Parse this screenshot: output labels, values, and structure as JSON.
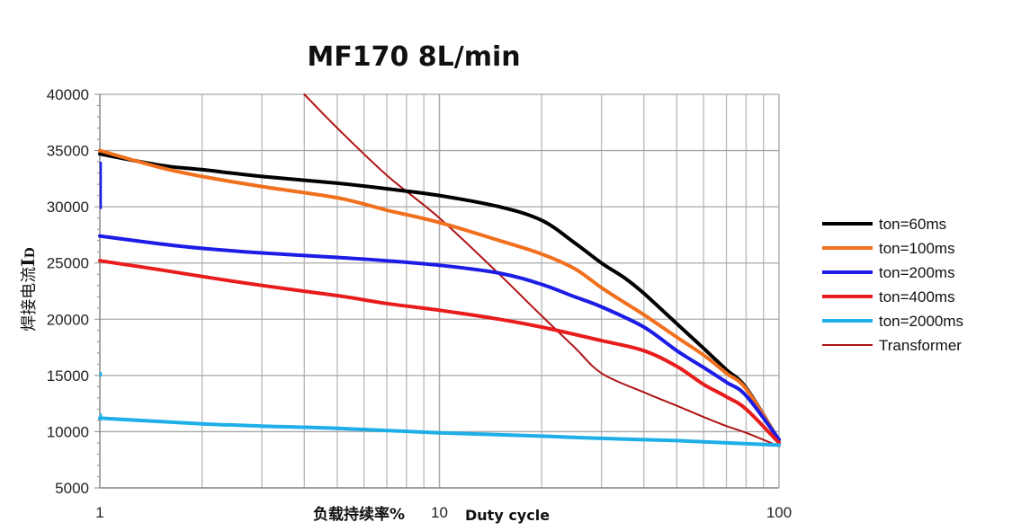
{
  "chart_data": {
    "type": "line",
    "title": "MF170 8L/min",
    "xlabel_cn": "负载持续率%",
    "xlabel_en": "Duty cycle",
    "ylabel_cn": "焊接电流",
    "ylabel_sym": "I",
    "ylabel_sub": "D",
    "x_scale": "log",
    "xlim": [
      1,
      100
    ],
    "ylim": [
      5000,
      40000
    ],
    "x_ticks": [
      1,
      10,
      100
    ],
    "x_tick_labels": [
      "1",
      "10",
      "100"
    ],
    "y_ticks": [
      5000,
      10000,
      15000,
      20000,
      25000,
      30000,
      35000,
      40000
    ],
    "y_tick_labels": [
      "5000",
      "10000",
      "15000",
      "20000",
      "25000",
      "30000",
      "35000",
      "40000"
    ],
    "grid": true,
    "legend_position": "right",
    "series": [
      {
        "name": "ton=60ms",
        "color": "#000000",
        "width": 4,
        "x": [
          1,
          1.5,
          2,
          3,
          5,
          7,
          10,
          15,
          20,
          25,
          30,
          35,
          40,
          50,
          60,
          70,
          80,
          100
        ],
        "y": [
          34700,
          33700,
          33300,
          32700,
          32100,
          31600,
          31000,
          30000,
          28800,
          26800,
          25000,
          23700,
          22300,
          19600,
          17400,
          15500,
          13900,
          9200
        ]
      },
      {
        "name": "ton=100ms",
        "color": "#f0701e",
        "width": 4,
        "x": [
          1,
          1.5,
          2,
          3,
          5,
          7,
          10,
          15,
          20,
          25,
          30,
          35,
          40,
          50,
          60,
          70,
          80,
          100
        ],
        "y": [
          35000,
          33500,
          32700,
          31800,
          30800,
          29700,
          28600,
          27000,
          25800,
          24500,
          22800,
          21500,
          20400,
          18400,
          16800,
          15200,
          13800,
          9200
        ]
      },
      {
        "name": "ton=200ms",
        "color": "#1c1ce6",
        "width": 4,
        "x": [
          1,
          1.5,
          2,
          3,
          5,
          7,
          10,
          15,
          20,
          25,
          30,
          40,
          50,
          60,
          70,
          80,
          100
        ],
        "y": [
          27400,
          26700,
          26300,
          25900,
          25500,
          25200,
          24800,
          24100,
          23100,
          22000,
          21100,
          19300,
          17200,
          15700,
          14400,
          13200,
          9300
        ]
      },
      {
        "name": "ton=400ms",
        "color": "#e81c1c",
        "width": 4,
        "x": [
          1,
          1.5,
          2,
          3,
          5,
          7,
          10,
          15,
          20,
          30,
          40,
          50,
          60,
          70,
          80,
          100
        ],
        "y": [
          25200,
          24400,
          23800,
          23000,
          22100,
          21400,
          20800,
          20000,
          19300,
          18100,
          17200,
          15800,
          14200,
          13100,
          12000,
          9000
        ]
      },
      {
        "name": "ton=2000ms",
        "color": "#1eaee8",
        "width": 4,
        "x": [
          1,
          2,
          3,
          5,
          10,
          20,
          30,
          50,
          70,
          100
        ],
        "y": [
          11200,
          10700,
          10500,
          10300,
          9900,
          9600,
          9400,
          9200,
          9000,
          8800
        ]
      },
      {
        "name": "Transformer",
        "color": "#b01414",
        "width": 2,
        "x": [
          4,
          5,
          7,
          10,
          15,
          20,
          25,
          30,
          40,
          50,
          60,
          70,
          80,
          100
        ],
        "y": [
          40000,
          37000,
          32800,
          29000,
          24000,
          20300,
          17500,
          15200,
          13500,
          12300,
          11300,
          10500,
          9900,
          8700
        ]
      }
    ]
  }
}
